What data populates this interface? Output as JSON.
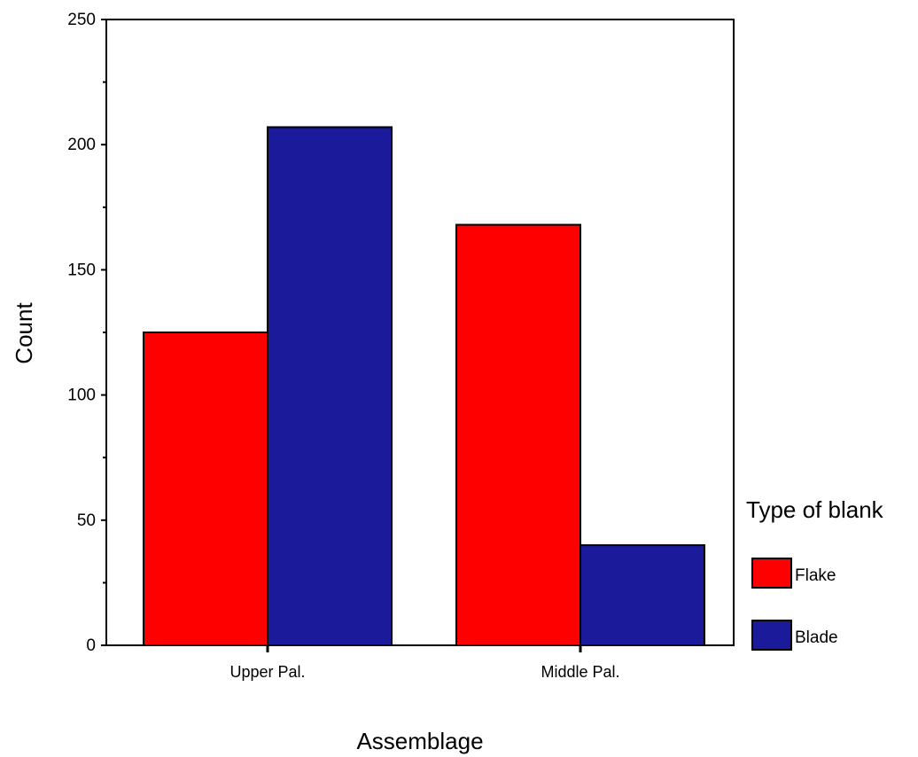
{
  "chart_data": {
    "type": "bar",
    "categories": [
      "Upper Pal.",
      "Middle Pal."
    ],
    "series": [
      {
        "name": "Flake",
        "values": [
          125,
          168
        ]
      },
      {
        "name": "Blade",
        "values": [
          207,
          40
        ]
      }
    ],
    "colors": {
      "Flake": "#ff0000",
      "Blade": "#1a1a9a"
    },
    "xlabel": "Assemblage",
    "ylabel": "Count",
    "ylim": [
      0,
      250
    ],
    "yticks": [
      "0",
      "50",
      "100",
      "150",
      "200",
      "250"
    ],
    "grid": false,
    "legend": {
      "title": "Type of blank",
      "placement": "right"
    }
  }
}
